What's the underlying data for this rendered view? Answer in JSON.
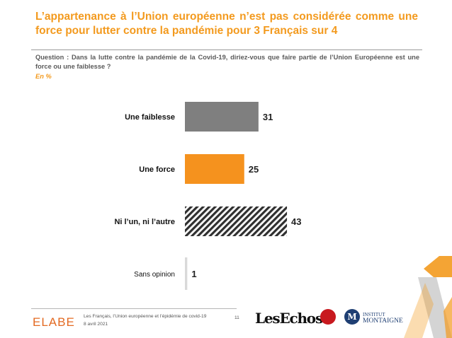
{
  "title": "L’appartenance à l’Union européenne n’est pas considérée comme une force pour lutter contre la pandémie pour 3 Français sur 4",
  "question": "Question : Dans la lutte contre la pandémie de la Covid-19, diriez-vous que faire partie de l’Union Européenne est une force ou une faiblesse ?",
  "unit": "En %",
  "chart_data": {
    "type": "bar",
    "orientation": "horizontal",
    "categories": [
      "Une faiblesse",
      "Une force",
      "Ni l’un, ni l’autre",
      "Sans opinion"
    ],
    "values": [
      31,
      25,
      43,
      1
    ],
    "value_labels": [
      "31",
      "25",
      "43",
      "1"
    ],
    "colors": [
      "#7f7f7f",
      "#f5921e",
      "hatched",
      "#d9d9d9"
    ],
    "xlim": [
      0,
      100
    ],
    "grid": false,
    "legend": "none"
  },
  "footer": {
    "logo": "ELABE",
    "line1": "Les Français, l’Union européenne et l’épidémie de covid-19",
    "line2": "8 avril 2021",
    "page": "11"
  },
  "partners": {
    "les_echos": "LesEchos",
    "montaigne_initial": "M",
    "montaigne_line1": "INSTITUT",
    "montaigne_line2": "MONTAIGNE"
  }
}
